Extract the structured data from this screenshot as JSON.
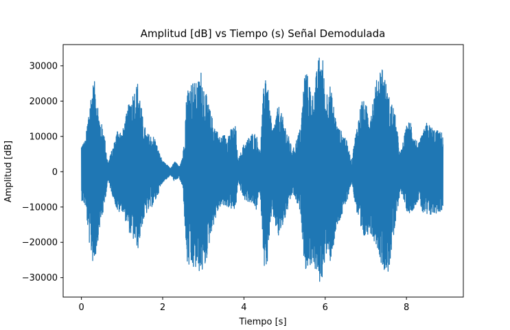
{
  "chart_data": {
    "type": "line",
    "title": "Amplitud [dB] vs Tiempo (s) Señal Demodulada",
    "xlabel": "Tiempo [s]",
    "ylabel": "Amplitud [dB]",
    "xlim": [
      -0.45,
      9.4
    ],
    "ylim": [
      -35500,
      36000
    ],
    "xticks": [
      0,
      2,
      4,
      6,
      8
    ],
    "xtick_labels": [
      "0",
      "2",
      "4",
      "6",
      "8"
    ],
    "yticks": [
      -30000,
      -20000,
      -10000,
      0,
      10000,
      20000,
      30000
    ],
    "ytick_labels": [
      "−30000",
      "−20000",
      "−10000",
      "0",
      "10000",
      "20000",
      "30000"
    ],
    "grid": false,
    "line_color": "#1f77b4",
    "series": [
      {
        "envelope": {
          "t": [
            0.0,
            0.1,
            0.2,
            0.3,
            0.35,
            0.45,
            0.55,
            0.65,
            0.8,
            0.9,
            1.0,
            1.2,
            1.4,
            1.5,
            1.6,
            1.8,
            1.9,
            2.0,
            2.1,
            2.2,
            2.3,
            2.4,
            2.5,
            2.6,
            2.7,
            2.85,
            2.95,
            3.05,
            3.2,
            3.4,
            3.6,
            3.75,
            3.8,
            3.85,
            4.0,
            4.2,
            4.3,
            4.4,
            4.5,
            4.55,
            4.6,
            4.7,
            4.85,
            5.0,
            5.2,
            5.4,
            5.5,
            5.7,
            5.85,
            5.95,
            6.0,
            6.1,
            6.3,
            6.5,
            6.65,
            6.75,
            6.9,
            7.1,
            7.3,
            7.4,
            7.55,
            7.7,
            7.85,
            8.0,
            8.1,
            8.2,
            8.3,
            8.4,
            8.5,
            8.7,
            8.9
          ],
          "max": [
            8000,
            9000,
            20000,
            26000,
            25000,
            15000,
            12000,
            2500,
            8000,
            13000,
            11000,
            21000,
            26000,
            16000,
            11000,
            10000,
            6000,
            3000,
            2000,
            1000,
            3000,
            1500,
            5000,
            24000,
            26000,
            25000,
            29000,
            23000,
            16000,
            10000,
            11000,
            13000,
            13000,
            3000,
            8000,
            11000,
            11000,
            6000,
            27000,
            31000,
            22000,
            12000,
            19000,
            14000,
            6000,
            13000,
            30000,
            22000,
            33000,
            32000,
            21000,
            26000,
            13000,
            10000,
            3000,
            11000,
            21000,
            17000,
            28000,
            31000,
            22000,
            18000,
            5000,
            13000,
            15000,
            10000,
            8000,
            11000,
            14000,
            12000,
            11000
          ],
          "min": [
            -8000,
            -10000,
            -21000,
            -27000,
            -24000,
            -16000,
            -11000,
            -2500,
            -8000,
            -12000,
            -11000,
            -18000,
            -22000,
            -15000,
            -12000,
            -9000,
            -6000,
            -3000,
            -2000,
            -1000,
            -3000,
            -1500,
            -5000,
            -27000,
            -28000,
            -28000,
            -29000,
            -27000,
            -17000,
            -10000,
            -10000,
            -11000,
            -11000,
            -3000,
            -8000,
            -9000,
            -11000,
            -6000,
            -27000,
            -31000,
            -21000,
            -12000,
            -19000,
            -14000,
            -6000,
            -12000,
            -28000,
            -26000,
            -32000,
            -30000,
            -23000,
            -27000,
            -16000,
            -10000,
            -3000,
            -10000,
            -20000,
            -17000,
            -22000,
            -27000,
            -29000,
            -18000,
            -5000,
            -11000,
            -12000,
            -10000,
            -8000,
            -12000,
            -13000,
            -12000,
            -11000
          ]
        }
      }
    ]
  }
}
